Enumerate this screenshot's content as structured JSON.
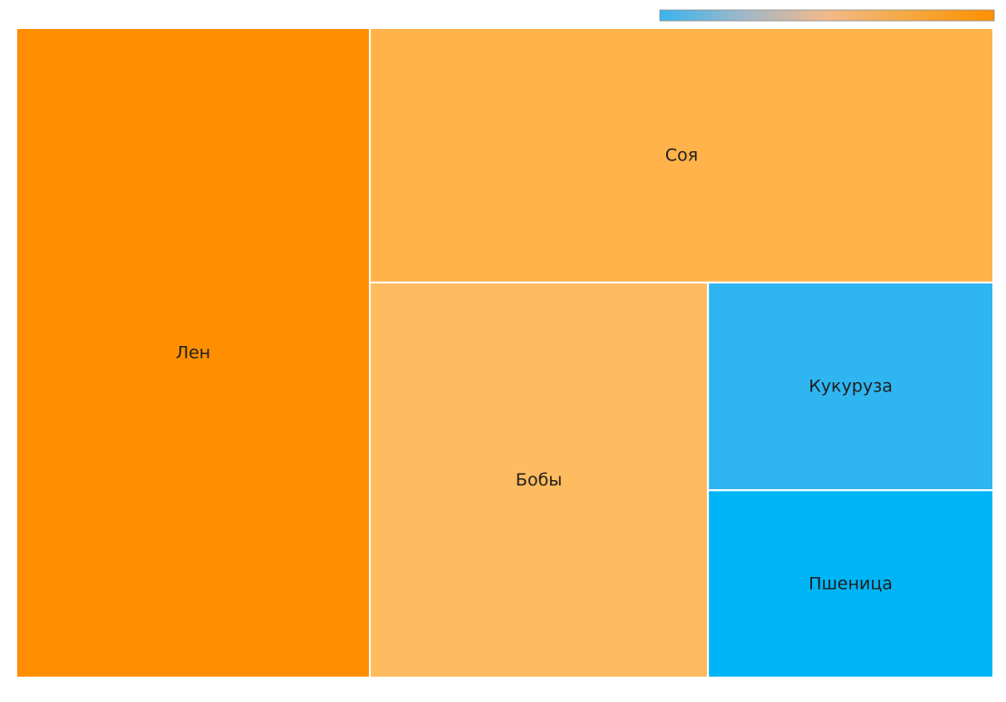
{
  "chart_data": {
    "type": "treemap",
    "items": [
      {
        "label": "Лен",
        "value": 27.5,
        "color": "#ff8f00"
      },
      {
        "label": "Соя",
        "value": 19.0,
        "color": "#ffb34a"
      },
      {
        "label": "Бобы",
        "value": 16.0,
        "color": "#ffbb5f"
      },
      {
        "label": "Кукуруза",
        "value": 7.1,
        "color": "#2fb6f0"
      },
      {
        "label": "Пшеница",
        "value": 6.4,
        "color": "#00b5f5"
      }
    ],
    "colorscale": {
      "stops": [
        "#39b4ef",
        "#9fb8c9",
        "#f2b98a",
        "#f5a83e",
        "#ff8f00"
      ]
    }
  }
}
